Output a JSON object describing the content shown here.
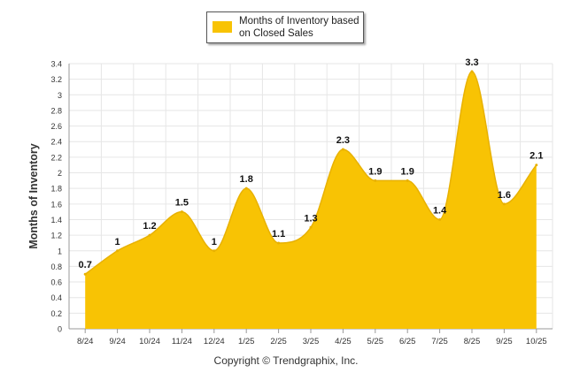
{
  "chart_data": {
    "type": "area",
    "title": "",
    "xlabel": "",
    "ylabel": "Months of Inventory",
    "categories": [
      "8/24",
      "9/24",
      "10/24",
      "11/24",
      "12/24",
      "1/25",
      "2/25",
      "3/25",
      "4/25",
      "5/25",
      "6/25",
      "7/25",
      "8/25",
      "9/25",
      "10/25"
    ],
    "series": [
      {
        "name": "Months of Inventory based on Closed Sales",
        "values": [
          0.7,
          1,
          1.2,
          1.5,
          1,
          1.8,
          1.1,
          1.3,
          2.3,
          1.9,
          1.9,
          1.4,
          3.3,
          1.6,
          2.1
        ],
        "labels": [
          "0.7",
          "1",
          "1.2",
          "1.5",
          "1",
          "1.8",
          "1.1",
          "1.3",
          "2.3",
          "1.9",
          "1.9",
          "1.4",
          "3.3",
          "1.6",
          "2.1"
        ]
      }
    ],
    "yticks": [
      "0",
      "0.2",
      "0.4",
      "0.6",
      "0.8",
      "1",
      "1.2",
      "1.4",
      "1.6",
      "1.8",
      "2",
      "2.2",
      "2.4",
      "2.6",
      "2.8",
      "3",
      "3.2",
      "3.4"
    ],
    "ylim": [
      0,
      3.4
    ],
    "grid": true,
    "legend_position": "top-center"
  },
  "legend": {
    "line1": "Months of Inventory based",
    "line2": "on Closed Sales"
  },
  "footer": {
    "copyright": "Copyright © Trendgraphix, Inc."
  },
  "colors": {
    "series_fill": "#F8C304",
    "series_stroke": "#E8B100",
    "grid": "#E6E6E6",
    "axis": "#999999",
    "tick_text": "#333333",
    "label_text": "#111111"
  }
}
